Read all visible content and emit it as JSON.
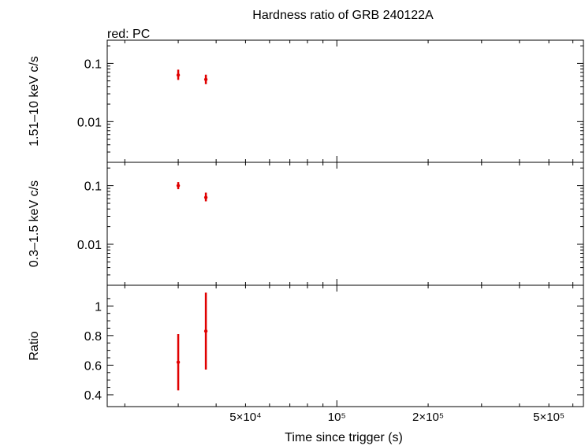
{
  "chart_data": {
    "type": "scatter",
    "title": "Hardness ratio of GRB 240122A",
    "legend": "red: PC",
    "xlabel": "Time since trigger (s)",
    "xscale": "log",
    "xlim": [
      17500,
      650000
    ],
    "x_tick_labels": [
      {
        "value": 50000,
        "label": "5×10⁴"
      },
      {
        "value": 100000,
        "label": "10⁵"
      },
      {
        "value": 200000,
        "label": "2×10⁵"
      },
      {
        "value": 500000,
        "label": "5×10⁵"
      }
    ],
    "panels": [
      {
        "id": "hard",
        "ylabel": "1.51–10 keV c/s",
        "yscale": "log",
        "ylim": [
          0.002,
          0.25
        ],
        "y_ticks": [
          {
            "value": 0.1,
            "label": "0.1"
          },
          {
            "value": 0.01,
            "label": "0.01"
          }
        ],
        "series": [
          {
            "name": "PC",
            "color": "#e00000",
            "points": [
              {
                "x": 30000,
                "y": 0.063,
                "ylo": 0.052,
                "yhi": 0.078
              },
              {
                "x": 37000,
                "y": 0.053,
                "ylo": 0.044,
                "yhi": 0.064
              }
            ]
          }
        ]
      },
      {
        "id": "soft",
        "ylabel": "0.3–1.5 keV c/s",
        "yscale": "log",
        "ylim": [
          0.002,
          0.25
        ],
        "y_ticks": [
          {
            "value": 0.1,
            "label": "0.1"
          },
          {
            "value": 0.01,
            "label": "0.01"
          }
        ],
        "series": [
          {
            "name": "PC",
            "color": "#e00000",
            "points": [
              {
                "x": 30000,
                "y": 0.1,
                "ylo": 0.087,
                "yhi": 0.115
              },
              {
                "x": 37000,
                "y": 0.063,
                "ylo": 0.054,
                "yhi": 0.076
              }
            ]
          }
        ]
      },
      {
        "id": "ratio",
        "ylabel": "Ratio",
        "yscale": "linear",
        "ylim": [
          0.32,
          1.14
        ],
        "y_ticks": [
          {
            "value": 0.4,
            "label": "0.4"
          },
          {
            "value": 0.6,
            "label": "0.6"
          },
          {
            "value": 0.8,
            "label": "0.8"
          },
          {
            "value": 1.0,
            "label": "1"
          }
        ],
        "series": [
          {
            "name": "PC",
            "color": "#e00000",
            "points": [
              {
                "x": 30000,
                "y": 0.62,
                "ylo": 0.43,
                "yhi": 0.81
              },
              {
                "x": 37000,
                "y": 0.83,
                "ylo": 0.57,
                "yhi": 1.09
              }
            ]
          }
        ]
      }
    ]
  }
}
